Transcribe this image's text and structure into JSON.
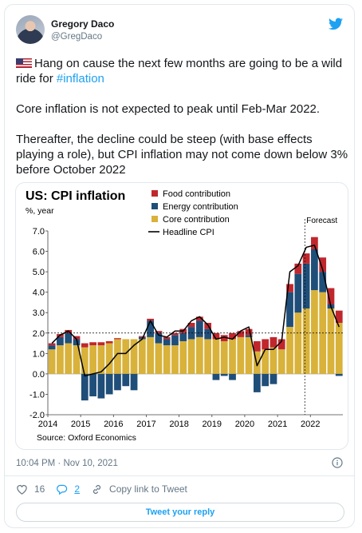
{
  "author": {
    "name": "Gregory Daco",
    "handle": "@GregDaco"
  },
  "tweet": {
    "line1": "Hang on cause the next few months are going to be a wild ride for ",
    "hashtag": "#inflation",
    "para2": "Core inflation is not expected to peak until Feb-Mar 2022.",
    "para3": "Thereafter, the decline could be steep (with base effects playing a role), but CPI inflation may not come down below 3% before October 2022"
  },
  "timestamp": "10:04 PM · Nov 10, 2021",
  "actions": {
    "likes": "16",
    "replies": "2",
    "copy_link": "Copy link to Tweet"
  },
  "reply_button": "Tweet your reply",
  "icons": [
    "avatar",
    "twitter-bird-icon",
    "us-flag-icon",
    "info-icon",
    "heart-icon",
    "reply-icon",
    "link-icon"
  ],
  "colors": {
    "accent": "#1da1f2",
    "food": "#c0272d",
    "energy": "#1f4e79",
    "core": "#d8b23a",
    "headline": "#000000"
  },
  "chart_data": {
    "type": "bar",
    "title": "US: CPI inflation",
    "ylabel": "%, year",
    "source": "Source: Oxford Economics",
    "forecast_label": "Forecast",
    "xlim": [
      2014.0,
      2022.99
    ],
    "ylim": [
      -2.0,
      7.0
    ],
    "yticks": [
      "-2.0",
      "-1.0",
      "0.0",
      "1.0",
      "2.0",
      "3.0",
      "4.0",
      "5.0",
      "6.0",
      "7.0"
    ],
    "xticks": [
      "2014",
      "2015",
      "2016",
      "2017",
      "2018",
      "2019",
      "2020",
      "2021",
      "2022"
    ],
    "forecast_start": 2021.83,
    "reference_line": 2.0,
    "legend": [
      "Food contribution",
      "Energy contribution",
      "Core contribution",
      "Headline CPI"
    ],
    "x": [
      2014.0,
      2014.25,
      2014.5,
      2014.75,
      2015.0,
      2015.25,
      2015.5,
      2015.75,
      2016.0,
      2016.25,
      2016.5,
      2016.75,
      2017.0,
      2017.25,
      2017.5,
      2017.75,
      2018.0,
      2018.25,
      2018.5,
      2018.75,
      2019.0,
      2019.25,
      2019.5,
      2019.75,
      2020.0,
      2020.25,
      2020.5,
      2020.75,
      2021.0,
      2021.25,
      2021.5,
      2021.75,
      2022.0,
      2022.25,
      2022.5,
      2022.75
    ],
    "core": [
      1.2,
      1.4,
      1.5,
      1.4,
      1.3,
      1.4,
      1.4,
      1.5,
      1.7,
      1.7,
      1.7,
      1.7,
      1.8,
      1.5,
      1.4,
      1.4,
      1.6,
      1.7,
      1.8,
      1.7,
      1.7,
      1.6,
      1.7,
      1.8,
      1.8,
      1.1,
      1.2,
      1.3,
      1.2,
      2.3,
      3.0,
      3.2,
      4.1,
      4.0,
      3.2,
      2.5
    ],
    "energy": [
      0.2,
      0.4,
      0.5,
      0.3,
      -1.3,
      -1.1,
      -1.2,
      -1.0,
      -0.8,
      -0.6,
      -0.8,
      0.1,
      0.8,
      0.5,
      0.3,
      0.5,
      0.4,
      0.6,
      0.8,
      0.5,
      -0.3,
      -0.1,
      -0.3,
      0.0,
      0.1,
      -0.9,
      -0.6,
      -0.5,
      0.0,
      1.7,
      1.9,
      2.2,
      2.0,
      1.0,
      0.2,
      -0.1
    ],
    "food": [
      0.1,
      0.15,
      0.15,
      0.15,
      0.2,
      0.15,
      0.15,
      0.1,
      0.05,
      0.0,
      0.0,
      0.05,
      0.1,
      0.1,
      0.1,
      0.1,
      0.2,
      0.2,
      0.2,
      0.3,
      0.3,
      0.3,
      0.3,
      0.3,
      0.3,
      0.5,
      0.5,
      0.5,
      0.5,
      0.4,
      0.5,
      0.5,
      0.6,
      0.7,
      0.8,
      0.6
    ],
    "headline": [
      1.5,
      1.9,
      2.1,
      1.7,
      -0.1,
      0.0,
      0.1,
      0.5,
      1.0,
      1.0,
      1.4,
      1.7,
      2.6,
      1.9,
      1.8,
      2.1,
      2.1,
      2.6,
      2.8,
      2.4,
      1.7,
      1.8,
      1.7,
      2.1,
      2.3,
      0.4,
      1.2,
      1.2,
      1.6,
      5.0,
      5.3,
      6.2,
      6.3,
      5.1,
      3.3,
      2.3
    ]
  }
}
